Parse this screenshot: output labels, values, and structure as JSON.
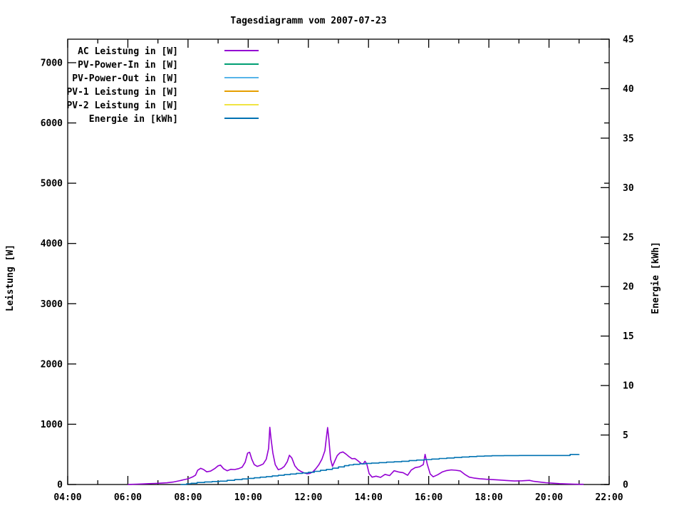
{
  "title": "Tagesdiagramm vom 2007-07-23",
  "axes": {
    "left_title": "Leistung [W]",
    "right_title": "Energie [kWh]",
    "left_tick_labels": [
      "0",
      "1000",
      "2000",
      "3000",
      "4000",
      "5000",
      "6000",
      "7000"
    ],
    "left_tick_values": [
      0,
      1000,
      2000,
      3000,
      4000,
      5000,
      6000,
      7000
    ],
    "right_tick_labels": [
      "0",
      "5",
      "10",
      "15",
      "20",
      "25",
      "30",
      "35",
      "40",
      "45"
    ],
    "right_tick_values": [
      0,
      5,
      10,
      15,
      20,
      25,
      30,
      35,
      40,
      45
    ],
    "x_tick_labels": [
      "04:00",
      "06:00",
      "08:00",
      "10:00",
      "12:00",
      "14:00",
      "16:00",
      "18:00",
      "20:00",
      "22:00"
    ],
    "x_tick_hours": [
      4,
      6,
      8,
      10,
      12,
      14,
      16,
      18,
      20,
      22
    ],
    "x_minor_hours": [
      5,
      7,
      9,
      11,
      13,
      15,
      17,
      19,
      21
    ]
  },
  "legend": {
    "items": [
      {
        "label": "AC Leistung in [W]",
        "color": "#9400d3"
      },
      {
        "label": "PV-Power-In in [W]",
        "color": "#009e73"
      },
      {
        "label": "PV-Power-Out in [W]",
        "color": "#56b4e9"
      },
      {
        "label": "PV-1 Leistung in [W]",
        "color": "#e69f00"
      },
      {
        "label": "PV-2 Leistung in [W]",
        "color": "#f0e442"
      },
      {
        "label": "Energie in [kWh]",
        "color": "#0072b2"
      }
    ]
  },
  "chart_data": {
    "type": "line",
    "title": "Tagesdiagramm vom 2007-07-23",
    "xlabel": "",
    "ylabel": "Leistung [W]",
    "y2label": "Energie [kWh]",
    "x_unit": "hours (time of day)",
    "xlim": [
      4,
      22
    ],
    "ylim": [
      0,
      7390
    ],
    "y2lim": [
      0,
      45
    ],
    "grid": false,
    "legend_position": "top-left-inside",
    "series": [
      {
        "name": "AC Leistung in [W]",
        "axis": "left",
        "color": "#9400d3",
        "style": "line",
        "points": [
          [
            6.0,
            0
          ],
          [
            6.1,
            2
          ],
          [
            6.3,
            6
          ],
          [
            6.5,
            10
          ],
          [
            6.7,
            14
          ],
          [
            6.9,
            18
          ],
          [
            7.1,
            22
          ],
          [
            7.3,
            28
          ],
          [
            7.5,
            40
          ],
          [
            7.7,
            60
          ],
          [
            7.85,
            78
          ],
          [
            8.0,
            95
          ],
          [
            8.15,
            125
          ],
          [
            8.25,
            155
          ],
          [
            8.32,
            235
          ],
          [
            8.42,
            268
          ],
          [
            8.52,
            248
          ],
          [
            8.62,
            210
          ],
          [
            8.75,
            222
          ],
          [
            8.9,
            268
          ],
          [
            9.0,
            310
          ],
          [
            9.08,
            322
          ],
          [
            9.18,
            262
          ],
          [
            9.3,
            228
          ],
          [
            9.42,
            252
          ],
          [
            9.55,
            248
          ],
          [
            9.68,
            262
          ],
          [
            9.8,
            288
          ],
          [
            9.9,
            370
          ],
          [
            9.98,
            520
          ],
          [
            10.05,
            535
          ],
          [
            10.12,
            420
          ],
          [
            10.2,
            330
          ],
          [
            10.3,
            300
          ],
          [
            10.4,
            318
          ],
          [
            10.5,
            340
          ],
          [
            10.6,
            420
          ],
          [
            10.68,
            600
          ],
          [
            10.72,
            950
          ],
          [
            10.76,
            760
          ],
          [
            10.82,
            520
          ],
          [
            10.9,
            330
          ],
          [
            11.0,
            245
          ],
          [
            11.1,
            262
          ],
          [
            11.2,
            300
          ],
          [
            11.3,
            380
          ],
          [
            11.37,
            485
          ],
          [
            11.45,
            440
          ],
          [
            11.55,
            310
          ],
          [
            11.65,
            250
          ],
          [
            11.75,
            218
          ],
          [
            11.85,
            195
          ],
          [
            11.95,
            178
          ],
          [
            12.05,
            185
          ],
          [
            12.15,
            210
          ],
          [
            12.25,
            262
          ],
          [
            12.35,
            330
          ],
          [
            12.45,
            420
          ],
          [
            12.55,
            560
          ],
          [
            12.6,
            780
          ],
          [
            12.64,
            945
          ],
          [
            12.68,
            760
          ],
          [
            12.74,
            420
          ],
          [
            12.8,
            300
          ],
          [
            12.88,
            390
          ],
          [
            12.96,
            480
          ],
          [
            13.05,
            525
          ],
          [
            13.15,
            540
          ],
          [
            13.25,
            505
          ],
          [
            13.35,
            462
          ],
          [
            13.45,
            428
          ],
          [
            13.55,
            430
          ],
          [
            13.65,
            392
          ],
          [
            13.75,
            350
          ],
          [
            13.82,
            340
          ],
          [
            13.88,
            385
          ],
          [
            13.94,
            345
          ],
          [
            14.02,
            180
          ],
          [
            14.12,
            122
          ],
          [
            14.25,
            138
          ],
          [
            14.4,
            118
          ],
          [
            14.55,
            168
          ],
          [
            14.7,
            148
          ],
          [
            14.85,
            228
          ],
          [
            15.0,
            208
          ],
          [
            15.15,
            196
          ],
          [
            15.3,
            152
          ],
          [
            15.42,
            240
          ],
          [
            15.55,
            280
          ],
          [
            15.7,
            295
          ],
          [
            15.82,
            330
          ],
          [
            15.88,
            500
          ],
          [
            15.95,
            340
          ],
          [
            16.05,
            175
          ],
          [
            16.15,
            128
          ],
          [
            16.3,
            162
          ],
          [
            16.45,
            208
          ],
          [
            16.6,
            232
          ],
          [
            16.75,
            242
          ],
          [
            16.9,
            236
          ],
          [
            17.05,
            226
          ],
          [
            17.2,
            168
          ],
          [
            17.35,
            122
          ],
          [
            17.5,
            108
          ],
          [
            17.7,
            96
          ],
          [
            17.9,
            88
          ],
          [
            18.1,
            82
          ],
          [
            18.35,
            74
          ],
          [
            18.6,
            66
          ],
          [
            18.85,
            58
          ],
          [
            19.1,
            62
          ],
          [
            19.35,
            68
          ],
          [
            19.5,
            52
          ],
          [
            19.7,
            40
          ],
          [
            19.9,
            30
          ],
          [
            20.1,
            22
          ],
          [
            20.35,
            14
          ],
          [
            20.6,
            9
          ],
          [
            20.85,
            6
          ],
          [
            21.05,
            4
          ],
          [
            21.15,
            3
          ]
        ]
      },
      {
        "name": "PV-Power-In in [W]",
        "axis": "left",
        "color": "#009e73",
        "style": "line",
        "points": []
      },
      {
        "name": "PV-Power-Out in [W]",
        "axis": "left",
        "color": "#56b4e9",
        "style": "line",
        "points": []
      },
      {
        "name": "PV-1 Leistung in [W]",
        "axis": "left",
        "color": "#e69f00",
        "style": "line",
        "points": []
      },
      {
        "name": "PV-2 Leistung in [W]",
        "axis": "left",
        "color": "#f0e442",
        "style": "line",
        "points": []
      },
      {
        "name": "Energie in [kWh]",
        "axis": "right",
        "color": "#0072b2",
        "style": "steps",
        "points": [
          [
            7.75,
            0
          ],
          [
            7.95,
            0.07
          ],
          [
            8.1,
            0.12
          ],
          [
            8.3,
            0.2
          ],
          [
            8.55,
            0.26
          ],
          [
            8.8,
            0.3
          ],
          [
            9.05,
            0.34
          ],
          [
            9.3,
            0.42
          ],
          [
            9.55,
            0.5
          ],
          [
            9.8,
            0.56
          ],
          [
            10.0,
            0.62
          ],
          [
            10.2,
            0.68
          ],
          [
            10.4,
            0.74
          ],
          [
            10.6,
            0.8
          ],
          [
            10.8,
            0.87
          ],
          [
            11.0,
            0.93
          ],
          [
            11.2,
            1.0
          ],
          [
            11.4,
            1.06
          ],
          [
            11.6,
            1.12
          ],
          [
            11.8,
            1.17
          ],
          [
            12.0,
            1.24
          ],
          [
            12.2,
            1.33
          ],
          [
            12.4,
            1.43
          ],
          [
            12.6,
            1.53
          ],
          [
            12.8,
            1.65
          ],
          [
            13.0,
            1.78
          ],
          [
            13.2,
            1.9
          ],
          [
            13.35,
            1.98
          ],
          [
            13.5,
            2.04
          ],
          [
            13.7,
            2.09
          ],
          [
            13.9,
            2.13
          ],
          [
            14.1,
            2.17
          ],
          [
            14.35,
            2.21
          ],
          [
            14.6,
            2.26
          ],
          [
            14.85,
            2.3
          ],
          [
            15.1,
            2.35
          ],
          [
            15.35,
            2.42
          ],
          [
            15.6,
            2.47
          ],
          [
            15.85,
            2.52
          ],
          [
            16.1,
            2.57
          ],
          [
            16.35,
            2.63
          ],
          [
            16.6,
            2.68
          ],
          [
            16.85,
            2.73
          ],
          [
            17.1,
            2.78
          ],
          [
            17.35,
            2.82
          ],
          [
            17.6,
            2.86
          ],
          [
            17.85,
            2.89
          ],
          [
            18.1,
            2.91
          ],
          [
            18.5,
            2.92
          ],
          [
            19.0,
            2.93
          ],
          [
            19.5,
            2.93
          ],
          [
            20.0,
            2.93
          ],
          [
            20.4,
            2.93
          ],
          [
            20.7,
            3.04
          ],
          [
            21.0,
            3.05
          ]
        ]
      }
    ]
  }
}
